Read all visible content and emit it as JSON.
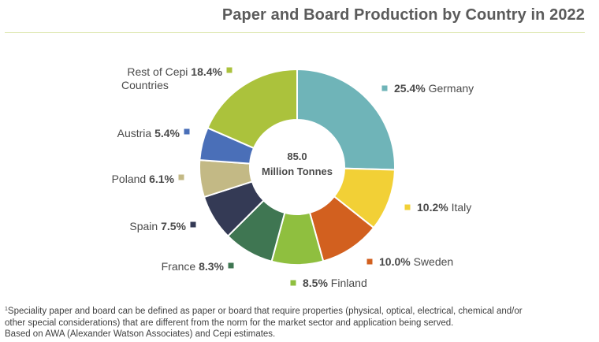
{
  "title": "Paper and Board Production by Country in 2022",
  "center_label": {
    "value": "85.0",
    "unit": "Million Tonnes"
  },
  "chart_data": {
    "type": "pie",
    "variant": "donut",
    "title": "Paper and Board Production by Country in 2022",
    "total": "85.0 Million Tonnes",
    "slices": [
      {
        "name": "Germany",
        "value": 25.4,
        "label": "25.4%",
        "color": "#6fb4b8"
      },
      {
        "name": "Italy",
        "value": 10.2,
        "label": "10.2%",
        "color": "#f2d036"
      },
      {
        "name": "Sweden",
        "value": 10.0,
        "label": "10.0%",
        "color": "#d2601f"
      },
      {
        "name": "Finland",
        "value": 8.5,
        "label": "8.5%",
        "color": "#8fbf3f"
      },
      {
        "name": "France",
        "value": 8.3,
        "label": "8.3%",
        "color": "#3f7652"
      },
      {
        "name": "Spain",
        "value": 7.5,
        "label": "7.5%",
        "color": "#343a55"
      },
      {
        "name": "Poland",
        "value": 6.1,
        "label": "6.1%",
        "color": "#c3b985"
      },
      {
        "name": "Austria",
        "value": 5.4,
        "label": "5.4%",
        "color": "#4a6fb8"
      },
      {
        "name": "Rest of Cepi Countries",
        "value": 18.4,
        "label": "18.4%",
        "color": "#abc23c"
      }
    ]
  },
  "footnotes": {
    "sup": "1",
    "line1": "Speciality paper and board can be defined as paper or board that require properties (physical, optical, electrical, chemical and/or",
    "line2": "other special considerations) that are different from the norm for the market sector and application being served.",
    "line3": "Based on AWA (Alexander Watson Associates) and Cepi estimates."
  }
}
